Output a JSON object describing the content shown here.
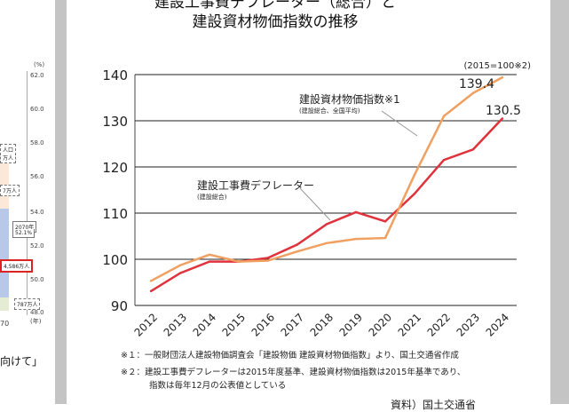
{
  "left_panel": {
    "unit": "(%)",
    "axis_ticks": [
      "62.0",
      "60.0",
      "58.0",
      "56.0",
      "54.0",
      "52.0",
      "50.0",
      "48.0"
    ],
    "axis_unit_bottom": "(年)",
    "callouts": [
      "人口",
      "万人",
      "7万人",
      "2070年",
      "52.1%",
      "4,586万人",
      "787万人"
    ],
    "x_tick": "70",
    "caption_fragment": "向けて」"
  },
  "chart_data": {
    "type": "line",
    "title_line1": "建設工事費デフレーター（総合）と",
    "title_line2": "建設資材物価指数の推移",
    "unit_note": "(2015=100※2)",
    "x": [
      "2012",
      "2013",
      "2014",
      "2015",
      "2016",
      "2017",
      "2018",
      "2019",
      "2020",
      "2021",
      "2022",
      "2023",
      "2024"
    ],
    "ylim": [
      90,
      140
    ],
    "yticks": [
      90,
      100,
      110,
      120,
      130,
      140
    ],
    "grid": true,
    "series": [
      {
        "name": "建設工事費デフレーター",
        "sub": "(建設総合)",
        "color": "#e0323c",
        "values": [
          93.1,
          97.0,
          99.5,
          99.5,
          100.3,
          103.2,
          107.6,
          110.2,
          108.2,
          114.2,
          121.5,
          123.8,
          130.5
        ],
        "end_label": "130.5"
      },
      {
        "name": "建設資材物価指数※1",
        "sub": "(建設総合、全国平均)",
        "color": "#f0a060",
        "values": [
          95.3,
          98.7,
          101.0,
          99.5,
          99.7,
          101.7,
          103.5,
          104.4,
          104.6,
          118.3,
          131.0,
          136.0,
          139.4
        ],
        "end_label": "139.4"
      }
    ]
  },
  "notes": [
    "※１：一般財団法人建設物価調査会「建設物価 建設資材物価指数」より、国土交通省作成",
    "※２：建設工事費デフレーターは2015年度基準、建設資材物価指数は2015年基準であり、",
    "指数は毎年12月の公表値としている"
  ],
  "source": "資料）国土交通省"
}
